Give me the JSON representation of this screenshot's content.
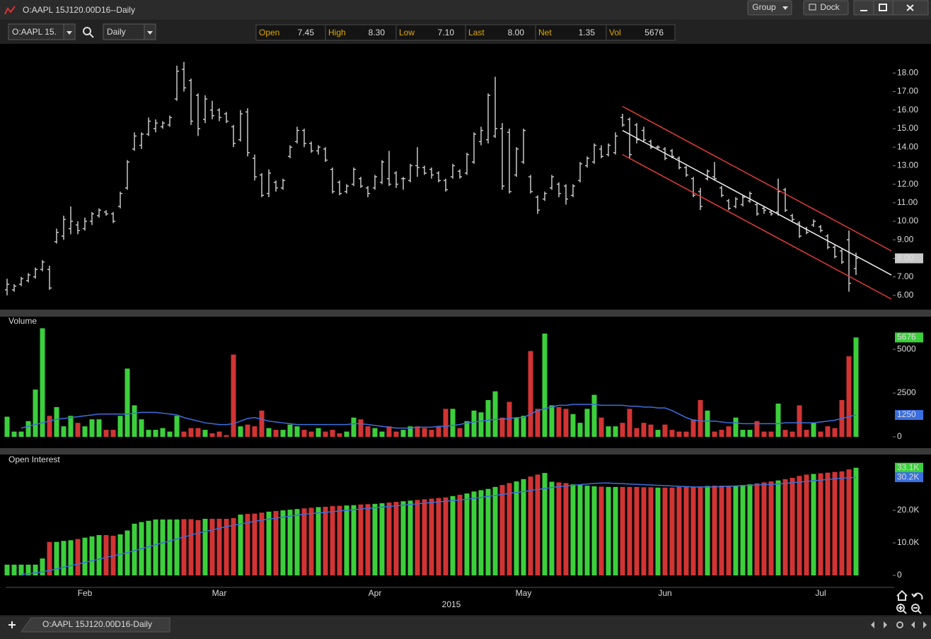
{
  "window": {
    "title": "O:AAPL 15J120.00D16--Daily",
    "buttons": [
      "Group",
      "Dock"
    ]
  },
  "toolbar": {
    "symbol": "O:AAPL 15.",
    "interval": "Daily"
  },
  "quote": [
    {
      "label": "Open",
      "value": "7.45"
    },
    {
      "label": "High",
      "value": "8.30"
    },
    {
      "label": "Low",
      "value": "7.10"
    },
    {
      "label": "Last",
      "value": "8.00"
    },
    {
      "label": "Net",
      "value": "1.35"
    },
    {
      "label": "Vol",
      "value": "5676"
    }
  ],
  "tab": "O:AAPL 15J120.00D16-Daily",
  "chart_data": [
    {
      "type": "ohlc",
      "color": "#c8c8c8",
      "xlabel": "2015",
      "categories": [
        null,
        null,
        null,
        null,
        null,
        null,
        null,
        null,
        null,
        null,
        null,
        "Feb",
        null,
        null,
        null,
        null,
        null,
        null,
        null,
        null,
        null,
        null,
        null,
        null,
        null,
        null,
        null,
        null,
        null,
        null,
        "Mar",
        null,
        null,
        null,
        null,
        null,
        null,
        null,
        null,
        null,
        null,
        null,
        null,
        null,
        null,
        null,
        null,
        null,
        null,
        null,
        null,
        null,
        "Apr",
        null,
        null,
        null,
        null,
        null,
        null,
        null,
        null,
        null,
        null,
        null,
        null,
        null,
        null,
        null,
        null,
        null,
        null,
        null,
        null,
        "May",
        null,
        null,
        null,
        null,
        null,
        null,
        null,
        null,
        null,
        null,
        null,
        null,
        null,
        null,
        null,
        null,
        null,
        null,
        null,
        "Jun",
        null,
        null,
        null,
        null,
        null,
        null,
        null,
        null,
        null,
        null,
        null,
        null,
        null,
        null,
        null,
        null,
        null,
        null,
        null,
        null,
        null,
        "Jul",
        null,
        null,
        null,
        null,
        null
      ],
      "open": [
        6.3,
        6.3,
        6.6,
        6.8,
        7.0,
        7.4,
        7.4,
        8.9,
        9.2,
        9.6,
        9.8,
        9.6,
        10.0,
        10.3,
        10.5,
        10.4,
        10.8,
        11.8,
        13.9,
        14.1,
        14.7,
        15.0,
        15.1,
        15.2,
        16.6,
        18.2,
        17.6,
        16.8,
        15.5,
        16.0,
        16.0,
        15.8,
        15.1,
        14.4,
        15.9,
        13.4,
        12.5,
        11.5,
        12.1,
        11.8,
        13.5,
        14.3,
        14.9,
        14.2,
        13.8,
        13.9,
        12.8,
        12.1,
        11.6,
        12.0,
        12.3,
        11.8,
        11.8,
        12.1,
        12.3,
        12.6,
        12.3,
        12.2,
        13.0,
        12.9,
        12.8,
        12.6,
        12.2,
        12.4,
        12.7,
        12.6,
        13.2,
        14.3,
        14.4,
        14.6,
        15.0,
        14.8,
        12.5,
        13.2,
        12.4,
        11.3,
        11.2,
        11.8,
        12.0,
        11.9,
        11.4,
        12.2,
        13.0,
        13.2,
        13.9,
        13.6,
        13.7,
        15.6,
        15.5,
        15.2,
        14.9,
        14.3,
        14.0,
        13.9,
        13.8,
        13.4,
        12.9,
        12.3,
        11.6,
        12.3,
        12.4,
        11.8,
        11.1,
        10.8,
        10.9,
        11.1,
        10.9,
        10.7,
        10.5,
        10.5,
        11.7,
        10.3,
        9.9,
        9.6,
        9.8,
        9.7,
        9.2,
        8.6,
        8.4,
        9.0,
        7.45
      ],
      "high": [
        6.9,
        6.6,
        7.0,
        7.2,
        7.5,
        7.9,
        7.6,
        9.6,
        10.3,
        10.8,
        10.0,
        10.2,
        10.5,
        10.7,
        10.6,
        10.5,
        11.6,
        13.3,
        14.8,
        14.8,
        15.6,
        15.5,
        15.4,
        15.7,
        18.4,
        18.6,
        17.7,
        16.9,
        16.8,
        16.5,
        16.1,
        15.9,
        15.2,
        16.0,
        16.1,
        13.6,
        12.6,
        12.8,
        12.2,
        12.3,
        14.1,
        15.1,
        15.0,
        14.3,
        14.1,
        14.0,
        12.9,
        12.2,
        12.0,
        12.9,
        12.4,
        11.9,
        12.5,
        13.3,
        13.8,
        12.7,
        12.4,
        13.1,
        14.0,
        13.0,
        12.9,
        12.7,
        12.3,
        13.1,
        12.8,
        13.7,
        14.8,
        15.1,
        16.9,
        17.8,
        15.3,
        15.0,
        14.0,
        15.0,
        12.5,
        11.4,
        11.6,
        12.5,
        12.1,
        12.0,
        12.0,
        13.2,
        13.5,
        14.2,
        14.1,
        14.2,
        14.8,
        15.8,
        15.6,
        15.3,
        15.1,
        14.4,
        14.1,
        14.0,
        13.9,
        13.5,
        13.0,
        12.4,
        11.8,
        12.8,
        13.2,
        11.9,
        11.2,
        11.3,
        11.4,
        11.6,
        11.0,
        10.8,
        10.6,
        12.3,
        11.8,
        10.4,
        10.0,
        9.7,
        10.1,
        9.8,
        9.3,
        8.7,
        8.5,
        9.5,
        8.3
      ],
      "low": [
        6.0,
        6.2,
        6.5,
        6.7,
        6.9,
        7.3,
        6.3,
        8.8,
        9.0,
        9.3,
        9.3,
        9.5,
        9.8,
        10.2,
        10.3,
        9.9,
        10.7,
        11.7,
        13.8,
        13.9,
        14.6,
        14.8,
        15.0,
        15.1,
        16.5,
        17.0,
        15.2,
        14.6,
        15.3,
        15.5,
        15.4,
        15.3,
        14.0,
        14.3,
        13.5,
        12.2,
        11.3,
        11.3,
        11.6,
        11.7,
        13.4,
        14.2,
        14.0,
        13.7,
        13.6,
        13.2,
        11.5,
        11.4,
        11.5,
        11.9,
        11.8,
        11.3,
        11.7,
        12.0,
        11.9,
        11.8,
        11.7,
        12.1,
        12.4,
        12.5,
        12.3,
        12.1,
        11.6,
        12.3,
        12.3,
        12.5,
        13.1,
        14.1,
        14.2,
        14.5,
        11.7,
        11.5,
        12.4,
        13.1,
        11.5,
        10.4,
        11.1,
        11.7,
        11.3,
        10.9,
        11.3,
        12.1,
        12.9,
        13.1,
        13.4,
        13.5,
        13.6,
        15.1,
        13.4,
        14.2,
        14.3,
        13.9,
        13.9,
        13.3,
        13.4,
        12.8,
        12.4,
        11.3,
        10.6,
        12.2,
        12.2,
        11.3,
        10.6,
        10.7,
        10.8,
        11.0,
        10.3,
        10.4,
        10.3,
        10.3,
        10.5,
        10.0,
        9.1,
        9.3,
        9.7,
        9.4,
        8.5,
        8.0,
        7.7,
        6.2,
        7.1
      ],
      "close": [
        6.6,
        6.5,
        6.9,
        7.1,
        7.4,
        7.8,
        6.4,
        9.4,
        10.1,
        10.0,
        9.5,
        10.0,
        10.4,
        10.6,
        10.4,
        10.0,
        11.5,
        13.2,
        14.6,
        14.7,
        15.4,
        15.3,
        15.3,
        15.6,
        18.1,
        17.2,
        15.4,
        15.0,
        16.6,
        15.7,
        15.6,
        15.4,
        14.2,
        15.8,
        13.7,
        12.4,
        11.4,
        12.6,
        11.8,
        12.2,
        14.0,
        14.9,
        14.2,
        13.8,
        14.0,
        13.3,
        11.6,
        11.5,
        11.9,
        12.8,
        11.9,
        11.5,
        12.4,
        13.2,
        12.0,
        12.0,
        12.3,
        13.0,
        12.9,
        12.6,
        12.5,
        12.2,
        11.7,
        13.0,
        12.4,
        13.6,
        14.7,
        14.9,
        16.8,
        15.0,
        11.9,
        11.6,
        13.9,
        14.9,
        11.6,
        10.6,
        11.5,
        12.4,
        11.5,
        11.2,
        11.9,
        13.1,
        13.4,
        14.1,
        13.5,
        14.1,
        14.6,
        15.2,
        13.6,
        14.4,
        14.4,
        14.0,
        14.0,
        13.4,
        13.5,
        12.9,
        12.5,
        11.4,
        10.8,
        12.7,
        12.3,
        11.4,
        10.7,
        11.2,
        11.3,
        11.5,
        10.4,
        10.6,
        10.4,
        11.6,
        10.6,
        10.1,
        9.2,
        9.4,
        10.0,
        9.5,
        8.6,
        8.1,
        7.8,
        6.65,
        8.0
      ],
      "channel": [
        {
          "color": "#e23a3a",
          "x": [
            87,
            125
          ],
          "values": [
            16.2,
            8.4
          ]
        },
        {
          "color": "#f4eeee",
          "x": [
            87,
            125
          ],
          "values": [
            14.9,
            7.1
          ]
        },
        {
          "color": "#e23a3a",
          "x": [
            87,
            125
          ],
          "values": [
            13.6,
            5.8
          ]
        }
      ],
      "ylim": [
        5.5,
        19.5
      ],
      "yticks": [
        {
          "value": 6,
          "label": "6.00"
        },
        {
          "value": 7,
          "label": "7.00"
        },
        {
          "value": 8,
          "label": "8.00"
        },
        {
          "value": 9,
          "label": "9.00"
        },
        {
          "value": 10,
          "label": "10.00"
        },
        {
          "value": 11,
          "label": "11.00"
        },
        {
          "value": 12,
          "label": "12.00"
        },
        {
          "value": 13,
          "label": "13.00"
        },
        {
          "value": 14,
          "label": "14.00"
        },
        {
          "value": 15,
          "label": "15.00"
        },
        {
          "value": 16,
          "label": "16.00"
        },
        {
          "value": 17,
          "label": "17.00"
        },
        {
          "value": 18,
          "label": "18.00"
        }
      ]
    },
    {
      "type": "bar",
      "title": "Volume",
      "up_color": "#3ccf3c",
      "down_color": "#d23434",
      "values": [
        1150,
        300,
        300,
        900,
        2700,
        6200,
        1200,
        1700,
        600,
        1200,
        800,
        600,
        1000,
        1000,
        400,
        400,
        1200,
        3900,
        1800,
        1000,
        400,
        400,
        500,
        300,
        1200,
        300,
        500,
        500,
        400,
        200,
        300,
        100,
        4700,
        600,
        700,
        600,
        1500,
        500,
        400,
        400,
        700,
        600,
        400,
        300,
        500,
        300,
        400,
        200,
        300,
        1100,
        1000,
        600,
        500,
        300,
        600,
        300,
        400,
        600,
        600,
        500,
        400,
        600,
        1600,
        1600,
        500,
        900,
        1500,
        1400,
        2100,
        2600,
        1100,
        2000,
        1100,
        1200,
        4900,
        1600,
        5900,
        1800,
        1700,
        1600,
        1300,
        800,
        1600,
        2400,
        1100,
        600,
        600,
        800,
        1600,
        500,
        800,
        700,
        400,
        700,
        400,
        300,
        300,
        1000,
        2100,
        1500,
        300,
        400,
        600,
        1100,
        400,
        400,
        900,
        300,
        300,
        1900,
        400,
        300,
        1800,
        400,
        800,
        300,
        600,
        500,
        2100,
        4600,
        5676
      ],
      "ma": {
        "color": "#3a6fe0",
        "values": [
          null,
          null,
          500,
          600,
          700,
          800,
          900,
          1000,
          1050,
          1100,
          1150,
          1200,
          1250,
          1300,
          1300,
          1300,
          1300,
          1300,
          1350,
          1400,
          1400,
          1400,
          1350,
          1300,
          1250,
          1100,
          1000,
          900,
          800,
          750,
          700,
          700,
          750,
          900,
          1050,
          1100,
          1000,
          900,
          850,
          800,
          750,
          700,
          700,
          700,
          700,
          700,
          700,
          700,
          700,
          750,
          750,
          700,
          650,
          600,
          550,
          500,
          500,
          500,
          550,
          550,
          550,
          600,
          600,
          650,
          700,
          800,
          850,
          900,
          950,
          1000,
          1000,
          1050,
          1100,
          1100,
          1300,
          1500,
          1600,
          1700,
          1800,
          1800,
          1850,
          1850,
          1850,
          1850,
          1800,
          1800,
          1800,
          1800,
          1750,
          1750,
          1700,
          1700,
          1650,
          1650,
          1500,
          1300,
          1100,
          950,
          900,
          900,
          900,
          850,
          800,
          800,
          750,
          750,
          750,
          750,
          750,
          750,
          800,
          800,
          800,
          800,
          800,
          850,
          900,
          950,
          1050,
          1150,
          1250
        ]
      },
      "ylim": [
        0,
        6500
      ],
      "yticks": [
        0,
        2500,
        5000
      ]
    },
    {
      "type": "bar",
      "title": "Open Interest",
      "up_color": "#3ccf3c",
      "down_color": "#d23434",
      "last_label": "33.1K",
      "values": [
        3300,
        3300,
        3300,
        3300,
        3300,
        5200,
        10300,
        10300,
        10600,
        10800,
        11200,
        11600,
        12000,
        12400,
        12400,
        12200,
        12600,
        13800,
        15900,
        16400,
        16800,
        17200,
        17200,
        17200,
        17200,
        17300,
        17300,
        17000,
        17400,
        17400,
        17400,
        17400,
        17600,
        18700,
        18900,
        19000,
        19300,
        19600,
        19800,
        20000,
        20200,
        20400,
        20600,
        20800,
        21000,
        21100,
        21300,
        21400,
        21500,
        21600,
        21800,
        21900,
        22000,
        22200,
        22400,
        22600,
        22800,
        23000,
        23200,
        23400,
        23600,
        23800,
        24000,
        24400,
        24800,
        25200,
        25800,
        26200,
        26600,
        27200,
        27800,
        28400,
        28900,
        29600,
        30400,
        31000,
        31500,
        28800,
        28600,
        28400,
        28000,
        27800,
        27600,
        27400,
        27300,
        27200,
        27200,
        27200,
        27200,
        27200,
        27100,
        27100,
        27000,
        27000,
        27000,
        27200,
        27300,
        27300,
        27300,
        27500,
        27600,
        27600,
        27600,
        27600,
        27800,
        28000,
        28300,
        28600,
        28900,
        29200,
        29600,
        30000,
        30600,
        31000,
        31200,
        31400,
        31600,
        31800,
        32000,
        32600,
        33100
      ],
      "ma": {
        "color": "#3a6fe0",
        "last_label": "30.2K",
        "values": [
          null,
          null,
          300,
          500,
          800,
          1100,
          1500,
          2000,
          2500,
          3000,
          3500,
          4000,
          4500,
          5000,
          5500,
          6000,
          6500,
          7000,
          7600,
          8200,
          8800,
          9400,
          10000,
          10600,
          11200,
          11800,
          12400,
          13000,
          13500,
          14000,
          14500,
          15000,
          15400,
          15800,
          16200,
          16600,
          17000,
          17300,
          17600,
          17900,
          18200,
          18500,
          18800,
          19000,
          19200,
          19400,
          19600,
          19800,
          20000,
          20200,
          20400,
          20600,
          20800,
          21000,
          21200,
          21400,
          21600,
          21800,
          22000,
          22200,
          22400,
          22600,
          22800,
          23000,
          23200,
          23400,
          23700,
          24000,
          24300,
          24600,
          24900,
          25200,
          25500,
          25800,
          26100,
          26400,
          26700,
          27000,
          27300,
          27500,
          27700,
          27900,
          28100,
          28300,
          28400,
          28400,
          28300,
          28200,
          28100,
          28000,
          27900,
          27800,
          27700,
          27600,
          27500,
          27400,
          27300,
          27200,
          27200,
          27200,
          27200,
          27300,
          27400,
          27500,
          27600,
          27700,
          27800,
          27900,
          28000,
          28100,
          28300,
          28500,
          28700,
          28900,
          29100,
          29300,
          29500,
          29700,
          29900,
          30000,
          30200
        ]
      },
      "ylim": [
        0,
        35000
      ],
      "yticks": [
        0,
        {
          "value": 10000,
          "label": "10.0K"
        },
        {
          "value": 20000,
          "label": "20.0K"
        }
      ]
    }
  ]
}
